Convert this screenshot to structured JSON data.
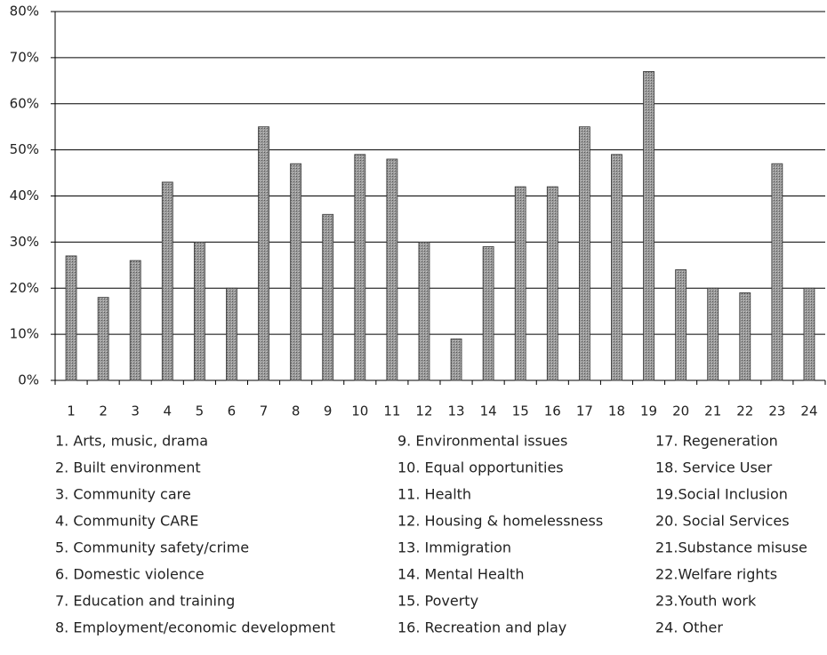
{
  "chart_data": {
    "type": "bar",
    "categories": [
      "1",
      "2",
      "3",
      "4",
      "5",
      "6",
      "7",
      "8",
      "9",
      "10",
      "11",
      "12",
      "13",
      "14",
      "15",
      "16",
      "17",
      "18",
      "19",
      "20",
      "21",
      "22",
      "23",
      "24"
    ],
    "values": [
      27,
      18,
      26,
      43,
      30,
      20,
      55,
      47,
      36,
      49,
      48,
      30,
      9,
      29,
      42,
      42,
      55,
      49,
      67,
      24,
      20,
      19,
      47,
      20
    ],
    "color": "#8c8c8c",
    "ylim": [
      0,
      80
    ],
    "yticks": [
      {
        "value": 0,
        "label": "0%"
      },
      {
        "value": 10,
        "label": "10%"
      },
      {
        "value": 20,
        "label": "20%"
      },
      {
        "value": 30,
        "label": "30%"
      },
      {
        "value": 40,
        "label": "40%"
      },
      {
        "value": 50,
        "label": "50%"
      },
      {
        "value": 60,
        "label": "60%"
      },
      {
        "value": 70,
        "label": "70%"
      },
      {
        "value": 80,
        "label": "80%"
      }
    ],
    "grid": true,
    "key": [
      "1. Arts, music, drama",
      "2. Built environment",
      "3. Community care",
      "4. Community  CARE",
      "5. Community safety/crime",
      "6. Domestic violence",
      "7. Education and training",
      "8. Employment/economic development",
      "9. Environmental issues",
      "10. Equal opportunities",
      "11. Health",
      "12. Housing & homelessness",
      "13. Immigration",
      "14. Mental Health",
      "15. Poverty",
      "16. Recreation and play",
      "17. Regeneration",
      "18. Service User",
      "19.Social Inclusion",
      "20. Social Services",
      "21.Substance misuse",
      "22.Welfare rights",
      "23.Youth work",
      "24. Other"
    ]
  }
}
